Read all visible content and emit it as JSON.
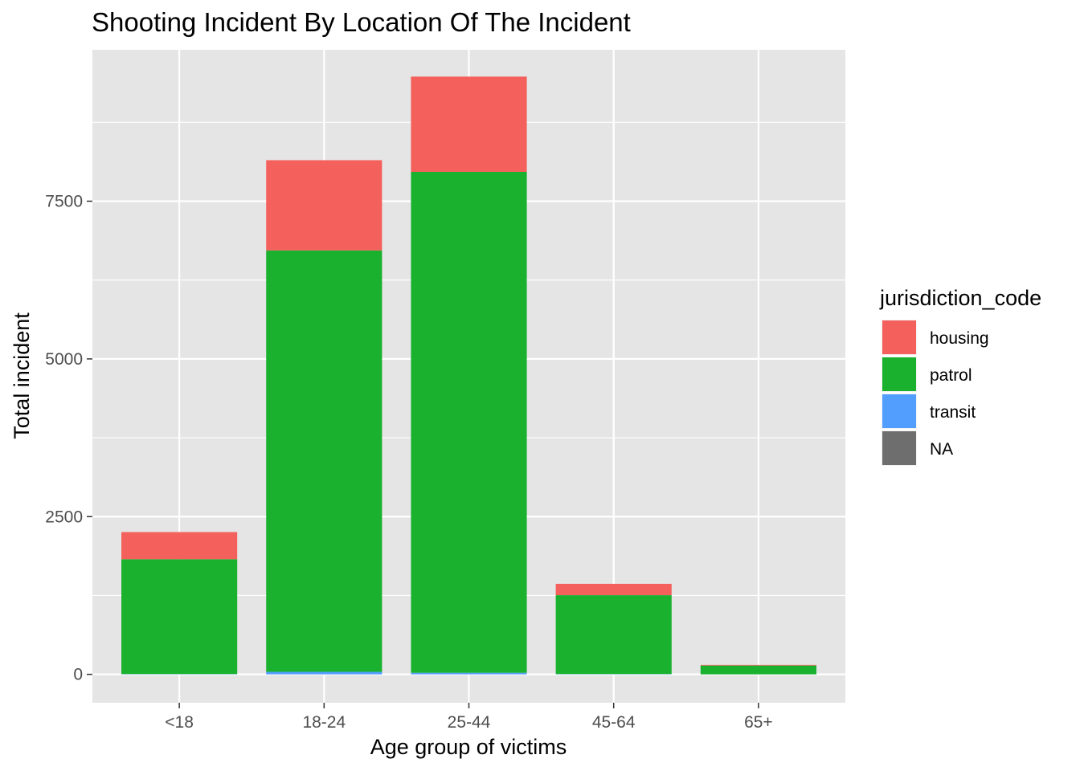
{
  "chart_data": {
    "type": "bar",
    "stacked": true,
    "title": "Shooting Incident By Location Of The Incident",
    "xlabel": "Age group of victims",
    "ylabel": "Total incident",
    "categories": [
      "<18",
      "18-24",
      "25-44",
      "45-64",
      "65+"
    ],
    "yticks": [
      0,
      2500,
      5000,
      7500
    ],
    "ylim": [
      -450,
      9900
    ],
    "grid": true,
    "legend": {
      "title": "jurisdiction_code",
      "placement": "right"
    },
    "series": [
      {
        "name": "transit",
        "color": "#529EFF",
        "values": [
          5,
          40,
          25,
          5,
          0
        ]
      },
      {
        "name": "patrol",
        "color": "#19B12E",
        "values": [
          1820,
          6680,
          7940,
          1250,
          140
        ]
      },
      {
        "name": "housing",
        "color": "#F4605C",
        "values": [
          430,
          1430,
          1510,
          180,
          10
        ]
      },
      {
        "name": "NA",
        "color": "#6E6E6E",
        "values": [
          0,
          0,
          0,
          0,
          0
        ]
      }
    ],
    "legend_order": [
      "housing",
      "patrol",
      "transit",
      "NA"
    ]
  }
}
